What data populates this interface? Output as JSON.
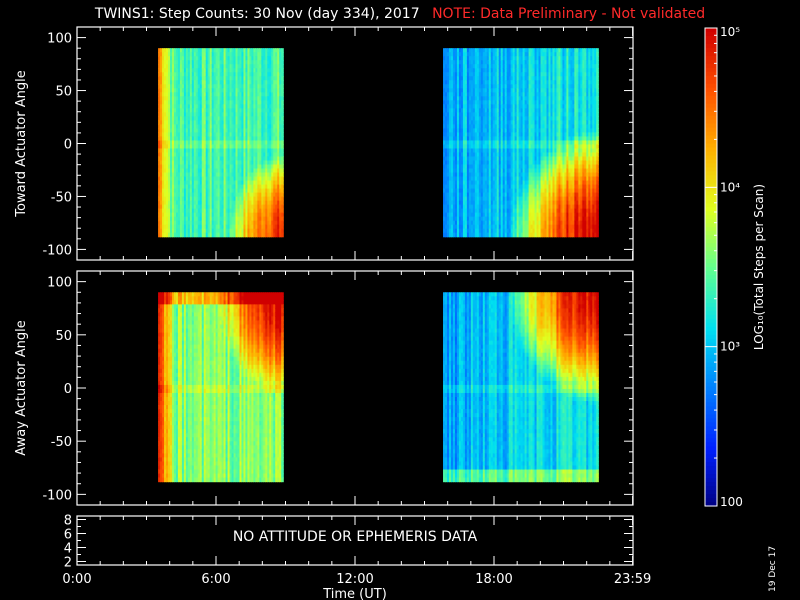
{
  "header": {
    "title": "TWINS1: Step Counts: 30 Nov (day 334), 2017",
    "note": "NOTE: Data Preliminary - Not validated"
  },
  "footer": {
    "date_stamp": "19 Dec 17"
  },
  "colors": {
    "background": "#000000",
    "axes": "#ffffff",
    "note_text": "#ff2a2a",
    "colormap": [
      "#000080",
      "#0020ff",
      "#0080ff",
      "#00e0f0",
      "#60ff90",
      "#e0ff20",
      "#ffb000",
      "#ff5000",
      "#d00000"
    ]
  },
  "chart_data": [
    {
      "type": "heatmap",
      "ylabel": "Toward Actuator Angle",
      "xlim": [
        0,
        24
      ],
      "ylim": [
        -110,
        110
      ],
      "yticks": [
        -100,
        -50,
        0,
        50,
        100
      ],
      "data_blocks": [
        {
          "x_start": 3.5,
          "x_end": 8.9,
          "y_start": -88,
          "y_end": 90,
          "approx_log10_counts": 3.4
        },
        {
          "x_start": 15.8,
          "x_end": 22.5,
          "y_start": -88,
          "y_end": 90,
          "approx_log10_counts": 2.9
        }
      ]
    },
    {
      "type": "heatmap",
      "ylabel": "Away Actuator Angle",
      "xlim": [
        0,
        24
      ],
      "ylim": [
        -110,
        110
      ],
      "yticks": [
        -100,
        -50,
        0,
        50,
        100
      ],
      "data_blocks": [
        {
          "x_start": 3.5,
          "x_end": 8.9,
          "y_start": -88,
          "y_end": 90,
          "approx_log10_counts": 3.6
        },
        {
          "x_start": 15.8,
          "x_end": 22.5,
          "y_start": -88,
          "y_end": 90,
          "approx_log10_counts": 2.9
        }
      ]
    },
    {
      "type": "line",
      "ylim": [
        1.5,
        8.5
      ],
      "yticks": [
        2,
        4,
        6,
        8
      ],
      "annotation": "NO ATTITUDE OR EPHEMERIS DATA",
      "xlabel": "Time (UT)",
      "xticks": [
        0,
        6,
        12,
        18,
        23.983
      ],
      "xtick_labels": [
        "0:00",
        "6:00",
        "12:00",
        "18:00",
        "23:59"
      ]
    }
  ],
  "colorbar": {
    "label": "LOG₁₀(Total Steps per Scan)",
    "scale": "log",
    "range": [
      100,
      100000
    ],
    "ticks": [
      {
        "value": 100,
        "label": "100"
      },
      {
        "value": 1000,
        "label": "10³"
      },
      {
        "value": 10000,
        "label": "10⁴"
      },
      {
        "value": 100000,
        "label": "10⁵"
      }
    ]
  }
}
